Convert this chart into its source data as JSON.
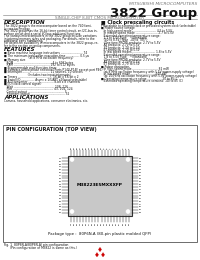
{
  "title_line1": "MITSUBISHI MICROCOMPUTERS",
  "title_line2": "3822 Group",
  "subtitle": "SINGLE-CHIP 8-BIT CMOS MICROCOMPUTER",
  "bg_color": "#ffffff",
  "text_color": "#111111",
  "gray_color": "#777777",
  "description_header": "DESCRIPTION",
  "description_text": [
    "The 3822 group is the microcomputer based on the 740 fami-",
    "ly core technology.",
    "The 3822 group has the 16-bit timer control circuit, an I2C-bus in-",
    "terface circuit and a serial I/O bus additional functions.",
    "The various microcomputers in the 3822 group include variations",
    "in internal memory sizes and packaging. For details, refer to the",
    "additional parts numbering.",
    "For details on availability of microcomputers in the 3822 group, re-",
    "fer to the section on group components."
  ],
  "features_header": "FEATURES",
  "features": [
    "■ Basic machine language instructions ......................... 74",
    "■ The minimum instruction execution time ............... 0.5 μs",
    "                            (at 8 MHz oscillation frequency)",
    "■ Memory size",
    "   ROM ........................................... 4 to 60K bytes",
    "   RAM ......................................... 192 to 512 bytes",
    "■ Programmable multifunction timer",
    "■ Software-polled phase selection (Ports P140-P14F except port P46)",
    "■ Interrupts ............................... 11 sources, 10 vectors",
    "                           (Includes two input interrupts)",
    "■ Timers ....................................... 16-bit x 16-bit x 2",
    "■ Serial I/O ............... Async x 1/UART x2(baud selectable)",
    "■ A-D converter ............................. 8-bit x 8 channels",
    "■ I/O (clock control signal)",
    "   Wait .............................................. 108, 116",
    "   Port .............................................. 43, 104, 124",
    "   Control output ......................................... 3",
    "   Segment output ....................................... 32"
  ],
  "right_features_header": "■ Clock prescaling circuits",
  "right_features": [
    "Prescalable to external clock or prescaled system clock (selectable)",
    "■ Power source voltage",
    "   In high speed mode ........................... 4.5 to 5.5V",
    "   In middle speed mode ......................... 2.7 to 5.5V",
    "   Extended operating temperature range:",
    "   2.7 to 5.5V Type      (Standard)",
    "   (40 to 8.5V) Type  -40 to  (85°)",
    "   (One time PROM) products: 2.7V to 5.5V",
    "   All products: 2.7V to 5.5V",
    "   ST products: 2.7V to 5.5V",
    "   ET products: 2.7V to 5.5V",
    "   In low speed modes .......................... 1.8 to 5.5V",
    "   Extended operating temperature range:",
    "   1.8 to 5.5V Type      (Standard)",
    "   (One time PROM) products: 2.7V to 5.5V",
    "   All products: 2.7V to 5.5V",
    "   ET products: 2.7V to 5.5V",
    "■ Power dissipation",
    "   In high speed mode ............................. 82 mW",
    "   (at 8 MHz oscillation frequency with 5.5V power-supply voltage)",
    "   In low speed mode ........................... 440 μW",
    "   (at 100 kHz oscillation frequency with 5.5V power-supply voltage)",
    "■ Operating temperature range ............... -20 to 85°C",
    "   Extended operating temperature versions: -40 to 85 (C)"
  ],
  "applications_header": "APPLICATIONS",
  "applications_text": "Camera, household applications, consumer electronics, etc.",
  "pin_header": "PIN CONFIGURATION (TOP VIEW)",
  "chip_label": "M38223E5MXXXFP",
  "package_text": "Package type :  80P6N-A (80-pin plastic molded QFP)",
  "fig_text": "Fig. 1  80P6N-A(80P6N-A) pin configuration",
  "fig_note": "      (Pin configuration of M3822 is same as this.)",
  "pin_count": 20,
  "chip_color": "#c8c8c8",
  "pin_color": "#222222",
  "box_border": "#555555"
}
